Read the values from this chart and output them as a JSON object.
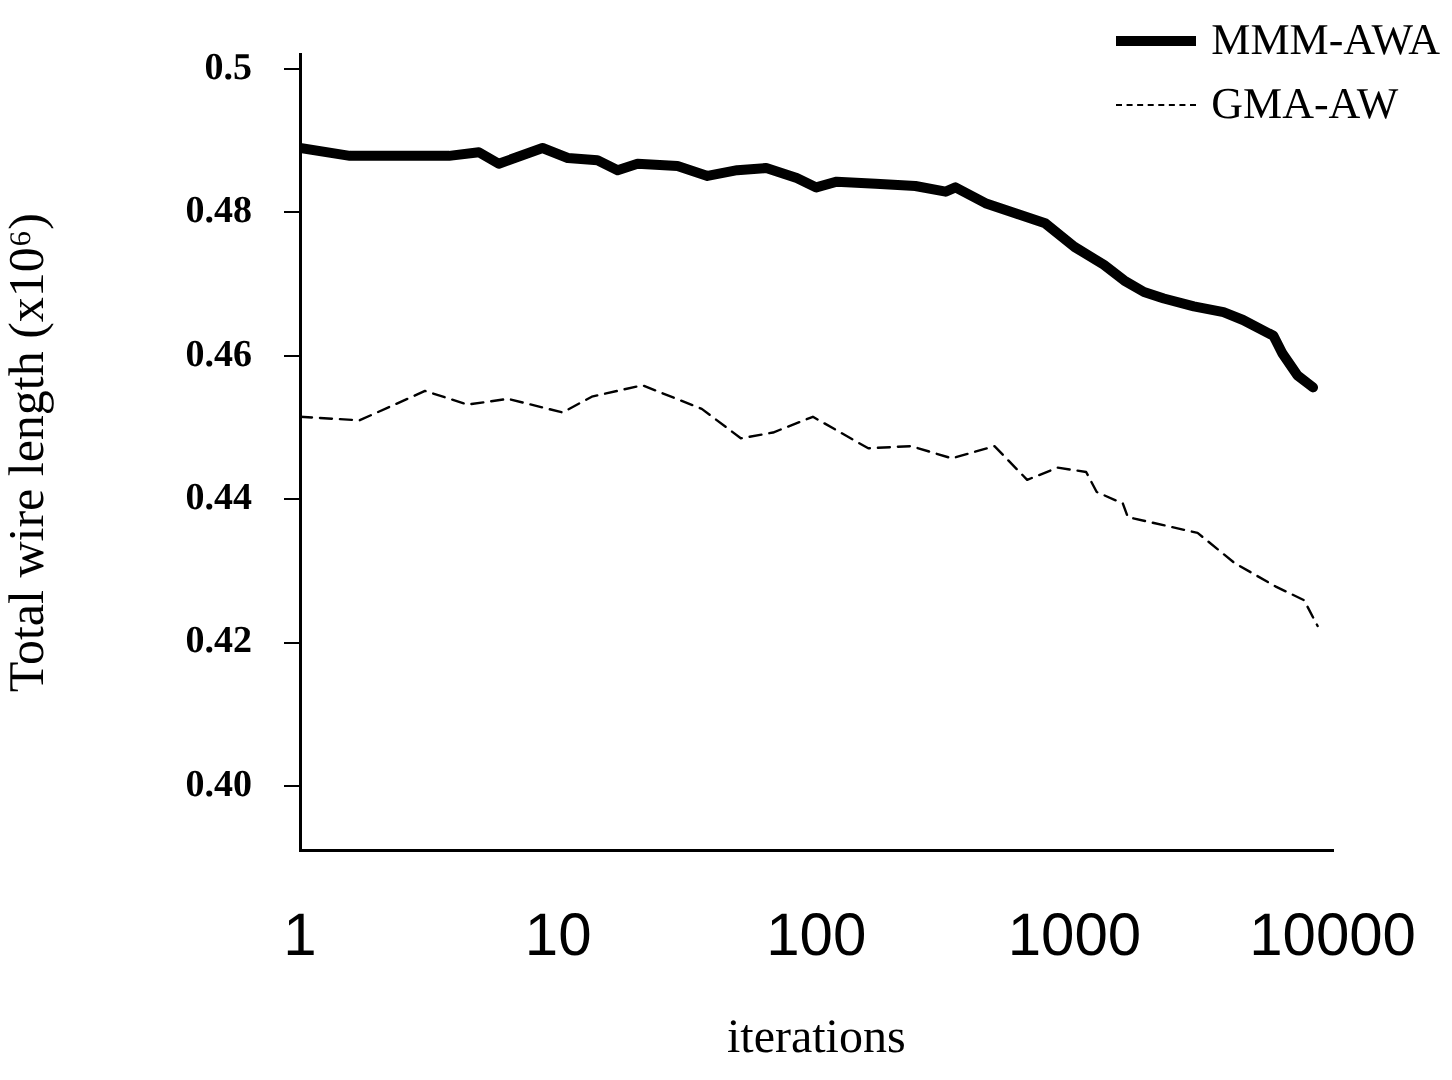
{
  "chart_data": {
    "type": "line",
    "xlabel": "iterations",
    "ylabel": "Total wire length (x10⁶)",
    "log": "x",
    "xlim": [
      1,
      10000
    ],
    "xticks": [
      1,
      10,
      100,
      1000,
      10000
    ],
    "ylim": [
      0.391,
      0.502
    ],
    "yticks": [
      {
        "value": 0.4,
        "label": "0.40"
      },
      0.42,
      0.44,
      0.46,
      0.48,
      {
        "value": 0.5,
        "label": "0.5"
      }
    ],
    "grid": false,
    "legend": "top right",
    "marker": "none",
    "series": [
      {
        "name": "MMM-AWA",
        "color": "#000000",
        "line_style": "solid",
        "x": [
          1,
          1.56,
          3.78,
          4.93,
          5.89,
          8.7,
          10.9,
          14.2,
          17,
          20.3,
          29,
          37.9,
          49.4,
          64,
          84,
          100,
          120,
          170,
          242,
          317,
          346,
          452,
          590,
          770,
          1000,
          1300,
          1560,
          1860,
          2220,
          2900,
          3780,
          4500,
          5900,
          6400,
          7300,
          8400
        ],
        "values": [
          0.489,
          0.4879,
          0.4879,
          0.4884,
          0.4868,
          0.489,
          0.4876,
          0.4873,
          0.4859,
          0.4868,
          0.4865,
          0.4851,
          0.4859,
          0.4862,
          0.4848,
          0.4835,
          0.4843,
          0.484,
          0.4837,
          0.4829,
          0.4835,
          0.4813,
          0.4799,
          0.4785,
          0.4752,
          0.4727,
          0.4705,
          0.4689,
          0.468,
          0.4669,
          0.4661,
          0.465,
          0.4628,
          0.4603,
          0.4573,
          0.4556
        ]
      },
      {
        "name": "GMA-AW",
        "color": "#000000",
        "line_style": "dashed",
        "x": [
          1,
          1.7,
          3.05,
          4.46,
          6.4,
          10.4,
          13.5,
          21.2,
          36,
          51,
          68,
          97,
          159,
          233,
          335,
          490,
          656,
          861,
          1110,
          1220,
          1540,
          1610,
          3000,
          4170,
          6030,
          7760,
          8750
        ],
        "values": [
          0.4515,
          0.451,
          0.4551,
          0.4532,
          0.454,
          0.4521,
          0.4543,
          0.4559,
          0.4526,
          0.4485,
          0.4493,
          0.4515,
          0.4471,
          0.4474,
          0.4457,
          0.4474,
          0.4427,
          0.4444,
          0.4438,
          0.441,
          0.4394,
          0.4375,
          0.4353,
          0.4311,
          0.4278,
          0.4259,
          0.4223
        ]
      }
    ]
  }
}
